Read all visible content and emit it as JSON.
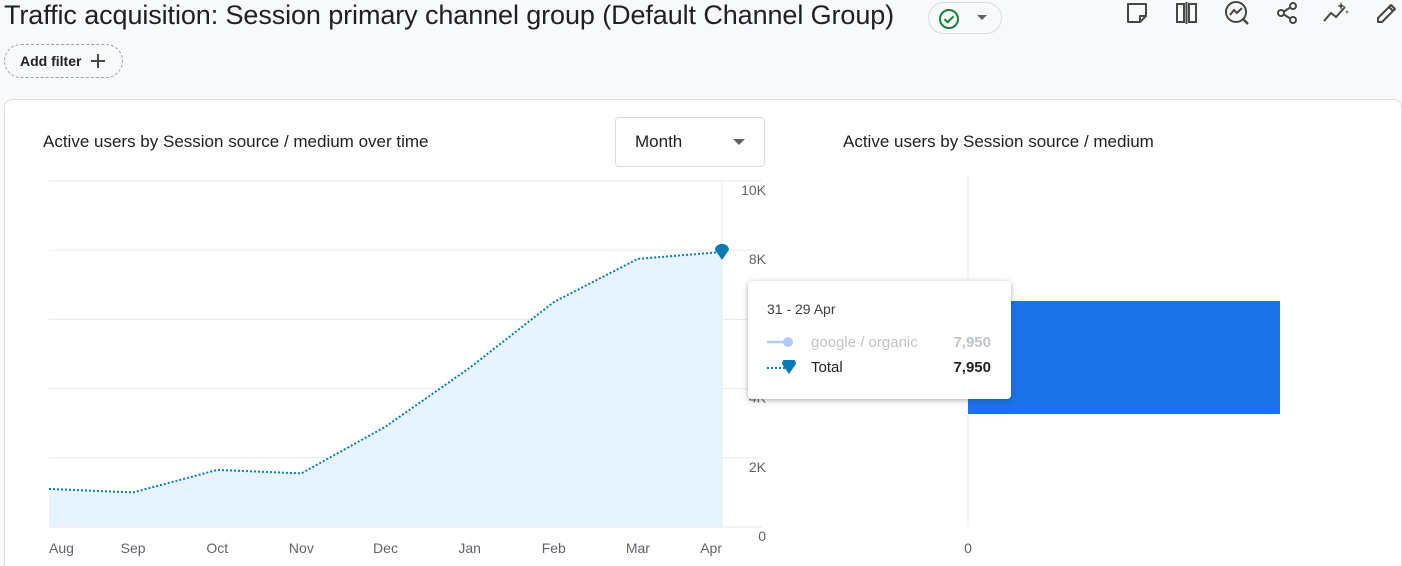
{
  "header": {
    "title": "Traffic acquisition: Session primary channel group (Default Channel Group)",
    "add_filter_label": "Add filter"
  },
  "toolbar": {
    "icons": [
      "note-icon",
      "compare-icon",
      "insights-icon",
      "share-icon",
      "trend-icon",
      "edit-icon"
    ]
  },
  "line_card": {
    "title": "Active users by Session source / medium over time",
    "period_select": "Month"
  },
  "bar_card": {
    "title": "Active users by Session source / medium"
  },
  "tooltip": {
    "date": "31 - 29 Apr",
    "rows": [
      {
        "name": "google / organic",
        "value": "7,950"
      },
      {
        "name": "Total",
        "value": "7,950"
      }
    ]
  },
  "colors": {
    "line": "#1a73e8",
    "area_fill": "#e8f4fd",
    "bar": "#1a73e8",
    "total_dot": "#0b7bb5",
    "status_green": "#188038"
  },
  "chart_data": [
    {
      "type": "area",
      "title": "Active users by Session source / medium over time",
      "categories": [
        "Aug",
        "Sep",
        "Oct",
        "Nov",
        "Dec",
        "Jan",
        "Feb",
        "Mar",
        "Apr"
      ],
      "series": [
        {
          "name": "Total",
          "values": [
            1100,
            1000,
            1650,
            1550,
            2900,
            4600,
            6500,
            7750,
            7950
          ]
        }
      ],
      "ylim": [
        0,
        10000
      ],
      "y_ticks": [
        "10K",
        "8K",
        "6K",
        "4K",
        "2K",
        "0"
      ],
      "grid": true
    },
    {
      "type": "bar",
      "title": "Active users by Session source / medium",
      "categories": [
        "google / organic"
      ],
      "values": [
        7950
      ],
      "x_ticks": [
        "0"
      ]
    }
  ]
}
